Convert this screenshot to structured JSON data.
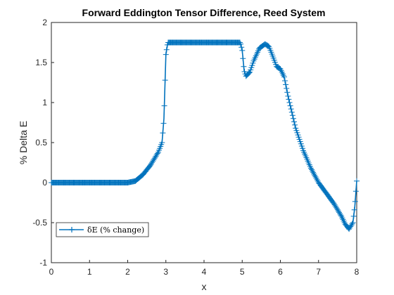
{
  "chart_data": {
    "type": "line",
    "title": "Forward Eddington Tensor Difference, Reed System",
    "xlabel": "x",
    "ylabel": "% Delta E",
    "xlim": [
      0,
      8
    ],
    "ylim": [
      -1,
      2
    ],
    "xticks": [
      "0",
      "1",
      "2",
      "3",
      "4",
      "5",
      "6",
      "7",
      "8"
    ],
    "yticks": [
      "-1",
      "-0.5",
      "0",
      "0.5",
      "1",
      "1.5",
      "2"
    ],
    "grid": false,
    "legend_position": "bottom-left",
    "series": [
      {
        "name": "δE (% change)",
        "color": "#0072BD",
        "marker": "plus",
        "points": [
          [
            0.0,
            0.0
          ],
          [
            1.0,
            0.0
          ],
          [
            2.0,
            0.0
          ],
          [
            2.2,
            0.02
          ],
          [
            2.4,
            0.1
          ],
          [
            2.6,
            0.22
          ],
          [
            2.8,
            0.38
          ],
          [
            2.9,
            0.5
          ],
          [
            2.95,
            0.8
          ],
          [
            3.0,
            1.6
          ],
          [
            3.05,
            1.75
          ],
          [
            3.5,
            1.75
          ],
          [
            4.0,
            1.75
          ],
          [
            4.5,
            1.75
          ],
          [
            4.95,
            1.75
          ],
          [
            5.0,
            1.65
          ],
          [
            5.05,
            1.4
          ],
          [
            5.1,
            1.33
          ],
          [
            5.2,
            1.38
          ],
          [
            5.3,
            1.52
          ],
          [
            5.45,
            1.68
          ],
          [
            5.6,
            1.73
          ],
          [
            5.7,
            1.7
          ],
          [
            5.8,
            1.58
          ],
          [
            5.9,
            1.45
          ],
          [
            6.0,
            1.42
          ],
          [
            6.1,
            1.32
          ],
          [
            6.2,
            1.08
          ],
          [
            6.4,
            0.68
          ],
          [
            6.6,
            0.4
          ],
          [
            6.8,
            0.18
          ],
          [
            7.0,
            0.0
          ],
          [
            7.2,
            -0.13
          ],
          [
            7.4,
            -0.26
          ],
          [
            7.6,
            -0.42
          ],
          [
            7.7,
            -0.52
          ],
          [
            7.8,
            -0.58
          ],
          [
            7.9,
            -0.5
          ],
          [
            7.95,
            -0.3
          ],
          [
            8.0,
            0.02
          ]
        ]
      }
    ]
  }
}
